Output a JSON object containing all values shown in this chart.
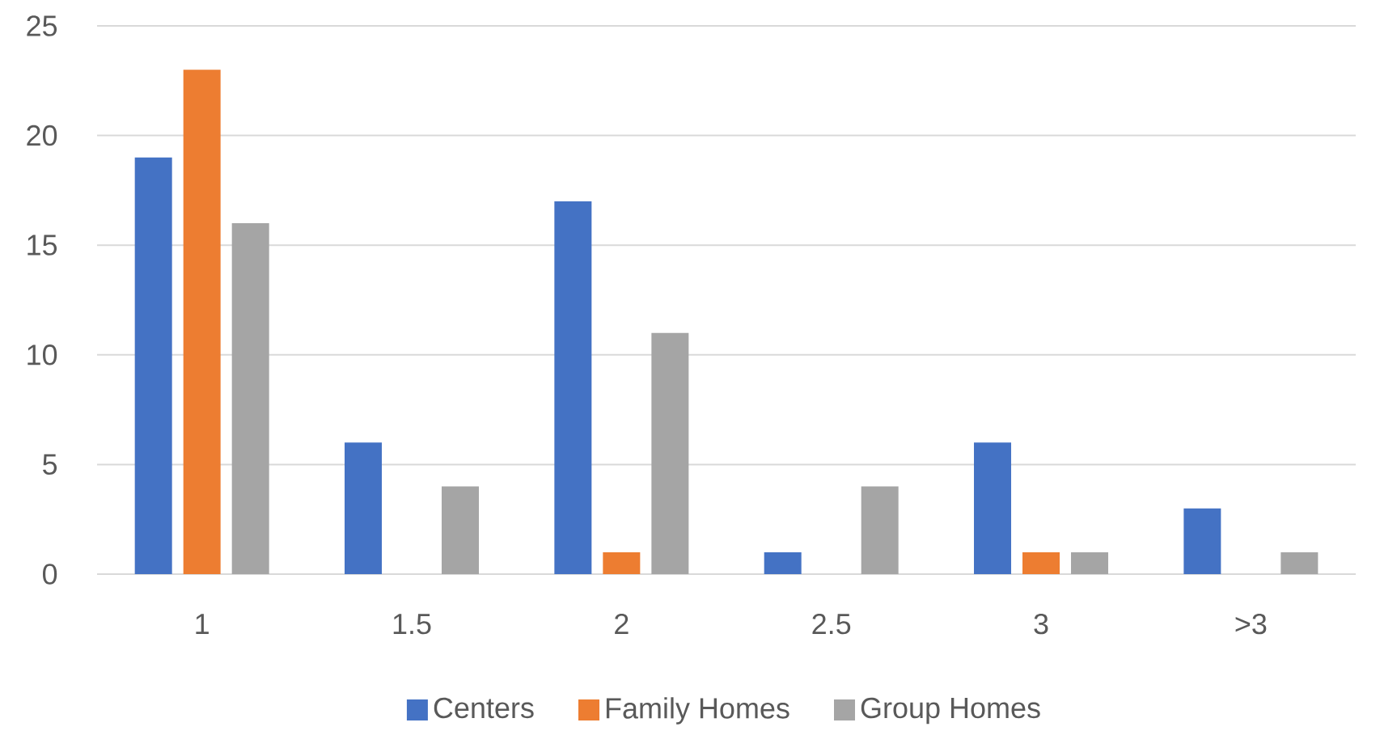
{
  "chart_data": {
    "type": "bar",
    "categories": [
      "1",
      "1.5",
      "2",
      "2.5",
      "3",
      ">3"
    ],
    "series": [
      {
        "name": "Centers",
        "color": "#4472c4",
        "values": [
          19,
          6,
          17,
          1,
          6,
          3
        ]
      },
      {
        "name": "Family Homes",
        "color": "#ed7d31",
        "values": [
          23,
          0,
          1,
          0,
          1,
          0
        ]
      },
      {
        "name": "Group Homes",
        "color": "#a5a5a5",
        "values": [
          16,
          4,
          11,
          4,
          1,
          1
        ]
      }
    ],
    "ylim": [
      0,
      25
    ],
    "yticks": [
      0,
      5,
      10,
      15,
      20,
      25
    ],
    "grid": "y",
    "legend": "bottom"
  }
}
